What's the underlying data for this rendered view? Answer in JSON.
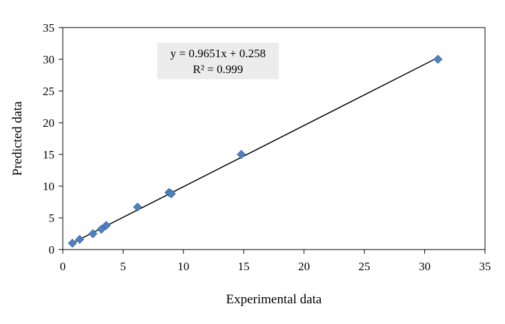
{
  "chart_data": {
    "type": "scatter",
    "xlabel": "Experimental data",
    "ylabel": "Predicted data",
    "xlim": [
      0,
      35
    ],
    "ylim": [
      0,
      35
    ],
    "xticks": [
      0,
      5,
      10,
      15,
      20,
      25,
      30,
      35
    ],
    "yticks": [
      0,
      5,
      10,
      15,
      20,
      25,
      30,
      35
    ],
    "grid": false,
    "marker": "diamond",
    "marker_color": "#4f81bd",
    "points": [
      {
        "x": 0.8,
        "y": 1.0
      },
      {
        "x": 1.4,
        "y": 1.6
      },
      {
        "x": 2.5,
        "y": 2.5
      },
      {
        "x": 3.2,
        "y": 3.2
      },
      {
        "x": 3.6,
        "y": 3.8
      },
      {
        "x": 6.2,
        "y": 6.7
      },
      {
        "x": 8.8,
        "y": 9.0
      },
      {
        "x": 9.0,
        "y": 8.8
      },
      {
        "x": 14.8,
        "y": 15.0
      },
      {
        "x": 31.1,
        "y": 30.0
      }
    ],
    "trendline": {
      "type": "linear",
      "slope": 0.9651,
      "intercept": 0.258,
      "x_range": [
        0.8,
        31.1
      ],
      "color": "#000000"
    },
    "annotations": {
      "equation": "y = 0.9651x + 0.258",
      "r_squared": "R² = 0.999"
    }
  }
}
